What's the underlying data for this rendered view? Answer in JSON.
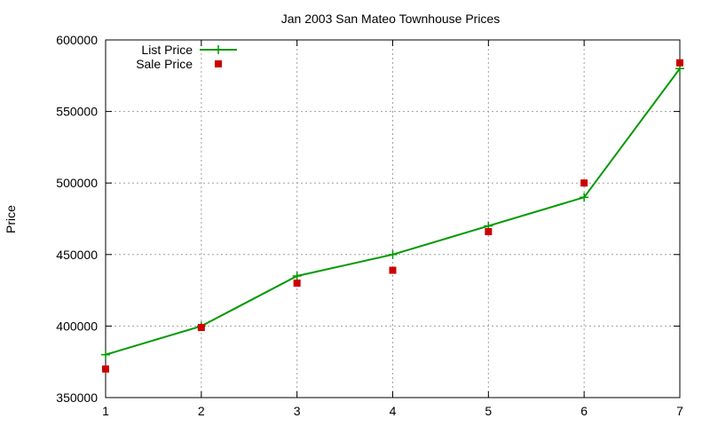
{
  "chart_data": {
    "type": "line",
    "title": "Jan 2003 San Mateo Townhouse Prices",
    "xlabel": "",
    "ylabel": "Price",
    "xlim": [
      1,
      7
    ],
    "ylim": [
      350000,
      600000
    ],
    "x_ticks": [
      1,
      2,
      3,
      4,
      5,
      6,
      7
    ],
    "y_ticks": [
      350000,
      400000,
      450000,
      500000,
      550000,
      600000
    ],
    "grid": true,
    "legend_position": "top-left",
    "series": [
      {
        "name": "List Price",
        "style": "linespoints",
        "marker": "plus",
        "color": "#009900",
        "x": [
          1,
          2,
          3,
          4,
          5,
          6,
          7
        ],
        "y": [
          380000,
          400000,
          435000,
          450000,
          470000,
          490000,
          580000
        ]
      },
      {
        "name": "Sale Price",
        "style": "points",
        "marker": "square",
        "color": "#cc0000",
        "x": [
          1,
          2,
          3,
          4,
          5,
          6,
          7
        ],
        "y": [
          370000,
          399000,
          430000,
          439000,
          466000,
          500000,
          584000
        ]
      }
    ]
  }
}
